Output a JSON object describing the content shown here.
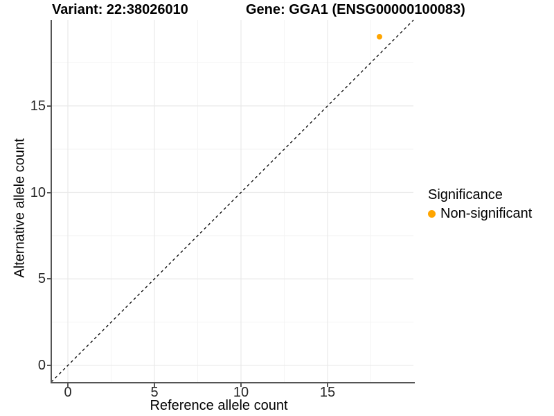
{
  "titles": {
    "left": "Variant: 22:38026010",
    "right": "Gene: GGA1 (ENSG00000100083)"
  },
  "chart_data": {
    "type": "scatter",
    "xlabel": "Reference allele count",
    "ylabel": "Alternative allele count",
    "xlim": [
      -0.96,
      19.96
    ],
    "ylim": [
      -0.96,
      19.96
    ],
    "xticks": [
      0,
      5,
      10,
      15
    ],
    "yticks": [
      0,
      5,
      10,
      15
    ],
    "minor_ticks": [
      2.5,
      7.5,
      12.5,
      17.5
    ],
    "grid": true,
    "grid_major_color": "#e9e9e9",
    "grid_minor_color": "#f4f4f4",
    "points": [
      {
        "x": 18,
        "y": 19,
        "series": "Non-significant"
      }
    ],
    "point_color": "#FFA500",
    "point_radius": 4,
    "identity_line": {
      "style": "dashed",
      "color": "#000000",
      "from": -0.96,
      "to": 19.96
    }
  },
  "legend": {
    "title": "Significance",
    "position": "right",
    "items": [
      {
        "label": "Non-significant",
        "color": "#FFA500"
      }
    ]
  }
}
